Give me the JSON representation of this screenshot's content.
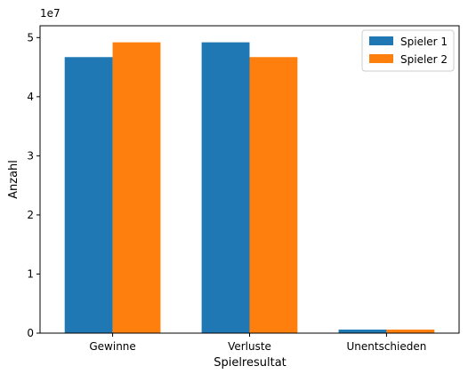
{
  "chart_data": {
    "type": "bar",
    "title": "",
    "xlabel": "Spielresultat",
    "ylabel": "Anzahl",
    "y_offset_label": "1e7",
    "y_scale": 10000000,
    "categories": [
      "Gewinne",
      "Verluste",
      "Unentschieden"
    ],
    "series": [
      {
        "name": "Spieler 1",
        "color": "#1f77b4",
        "values": [
          46700000,
          49200000,
          600000
        ]
      },
      {
        "name": "Spieler 2",
        "color": "#ff7f0e",
        "values": [
          49200000,
          46700000,
          600000
        ]
      }
    ],
    "ylim": [
      0,
      52000000
    ],
    "yticks": [
      0,
      1,
      2,
      3,
      4,
      5
    ],
    "legend_position": "top-right",
    "grid": false
  }
}
